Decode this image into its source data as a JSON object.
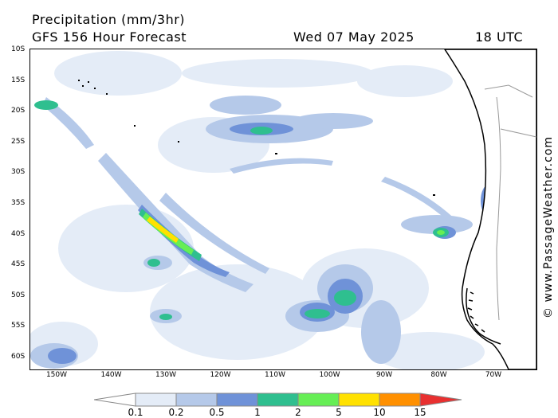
{
  "header": {
    "title": "Precipitation (mm/3hr)",
    "forecast": "GFS 156 Hour Forecast",
    "valid_date": "Wed 07 May 2025",
    "valid_time": "18 UTC"
  },
  "map": {
    "lat_labels": [
      "10S",
      "15S",
      "20S",
      "25S",
      "30S",
      "35S",
      "40S",
      "45S",
      "50S",
      "55S",
      "60S"
    ],
    "lon_labels": [
      "150W",
      "140W",
      "130W",
      "120W",
      "110W",
      "100W",
      "90W",
      "80W",
      "70W"
    ],
    "ocean_color": "#ffffff",
    "land_color": "#ffffff",
    "coastline_color": "#000000"
  },
  "credit": "© www.PassageWeather.com",
  "colorbar": {
    "labels": [
      "0.1",
      "0.2",
      "0.5",
      "1",
      "2",
      "5",
      "10",
      "15"
    ],
    "colors": [
      "#ffffff",
      "#e4ecf7",
      "#b5c9e9",
      "#6f92d8",
      "#2fbf8f",
      "#66ee55",
      "#ffe100",
      "#ff9000",
      "#e83030"
    ]
  }
}
